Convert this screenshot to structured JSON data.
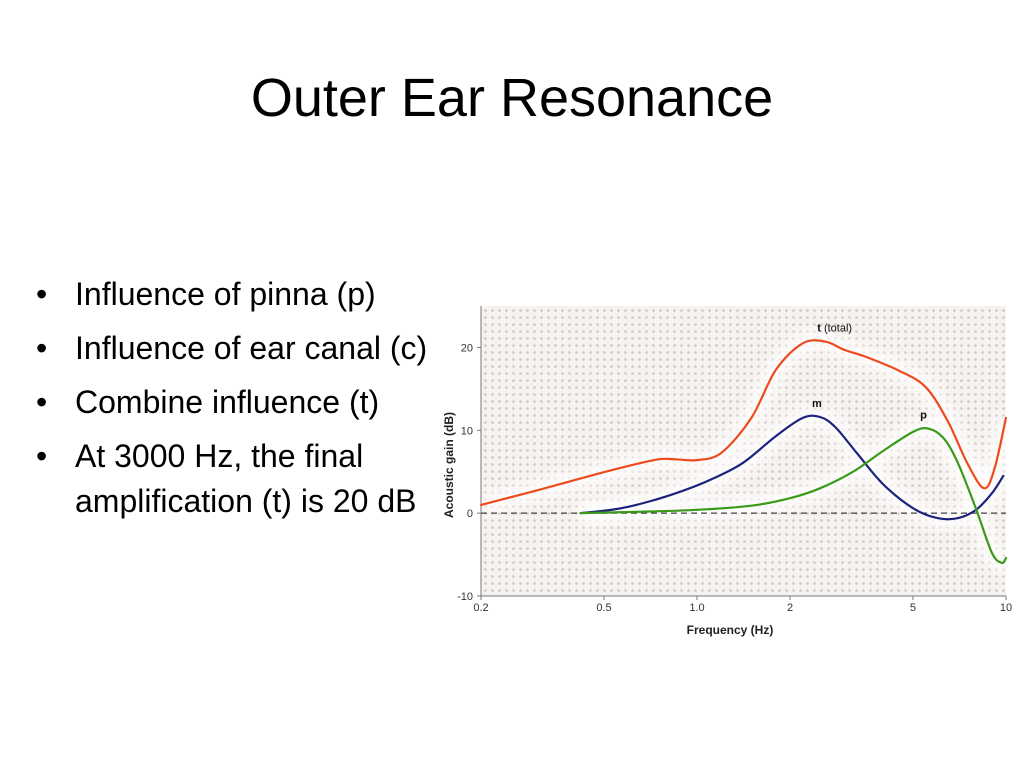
{
  "slide": {
    "title": "Outer Ear Resonance",
    "bullets": [
      "Influence of pinna (p)",
      "Influence of ear canal (c)",
      "Combine influence (t)",
      "At 3000 Hz, the final amplification (t) is 20 dB"
    ]
  },
  "chart_data": {
    "type": "line",
    "title": "",
    "xlabel": "Frequency (Hz)",
    "ylabel": "Acoustic gain (dB)",
    "x_scale": "log",
    "xlim": [
      0.2,
      10
    ],
    "ylim": [
      -10,
      25
    ],
    "x_ticks": [
      0.2,
      0.5,
      1.0,
      2,
      5,
      10
    ],
    "x_tick_labels": [
      "0.2",
      "0.5",
      "1.0",
      "2",
      "5",
      "10"
    ],
    "y_ticks": [
      -10,
      0,
      10,
      20
    ],
    "y_tick_labels": [
      "-10",
      "0",
      "10",
      "20"
    ],
    "reference_line": {
      "y": 0,
      "style": "dashed"
    },
    "series": [
      {
        "name": "t",
        "label_bold": "t",
        "label_extra": "(total)",
        "color": "#ee4a1e",
        "x": [
          0.2,
          0.3,
          0.45,
          0.6,
          0.75,
          0.85,
          1.0,
          1.2,
          1.5,
          1.8,
          2.2,
          2.6,
          3.0,
          3.5,
          4.5,
          5.5,
          6.5,
          7.5,
          8.5,
          9.2,
          10.0
        ],
        "y": [
          1.0,
          2.7,
          4.5,
          5.7,
          6.5,
          6.5,
          6.4,
          7.3,
          11.5,
          17.3,
          20.5,
          20.7,
          19.7,
          18.9,
          17.2,
          15.2,
          11.0,
          6.0,
          3.0,
          5.5,
          11.5
        ]
      },
      {
        "name": "m",
        "label_bold": "m",
        "color": "#1d237c",
        "x": [
          0.42,
          0.55,
          0.7,
          0.9,
          1.1,
          1.4,
          1.8,
          2.2,
          2.5,
          2.8,
          3.3,
          4.0,
          5.0,
          6.0,
          7.0,
          8.0,
          9.0,
          9.8
        ],
        "y": [
          0.0,
          0.5,
          1.4,
          2.7,
          4.0,
          6.0,
          9.3,
          11.5,
          11.6,
          10.4,
          7.2,
          3.5,
          0.6,
          -0.6,
          -0.6,
          0.4,
          2.4,
          4.5
        ]
      },
      {
        "name": "p",
        "label_bold": "p",
        "color": "#3a9a1a",
        "x": [
          0.42,
          0.7,
          1.0,
          1.5,
          2.0,
          2.5,
          3.2,
          4.0,
          5.0,
          5.6,
          6.3,
          7.0,
          8.0,
          9.0,
          9.7,
          10.0
        ],
        "y": [
          0.0,
          0.2,
          0.4,
          0.9,
          1.8,
          3.0,
          5.0,
          7.5,
          9.8,
          10.2,
          9.0,
          6.0,
          0.5,
          -4.8,
          -6.0,
          -5.4
        ]
      }
    ]
  }
}
